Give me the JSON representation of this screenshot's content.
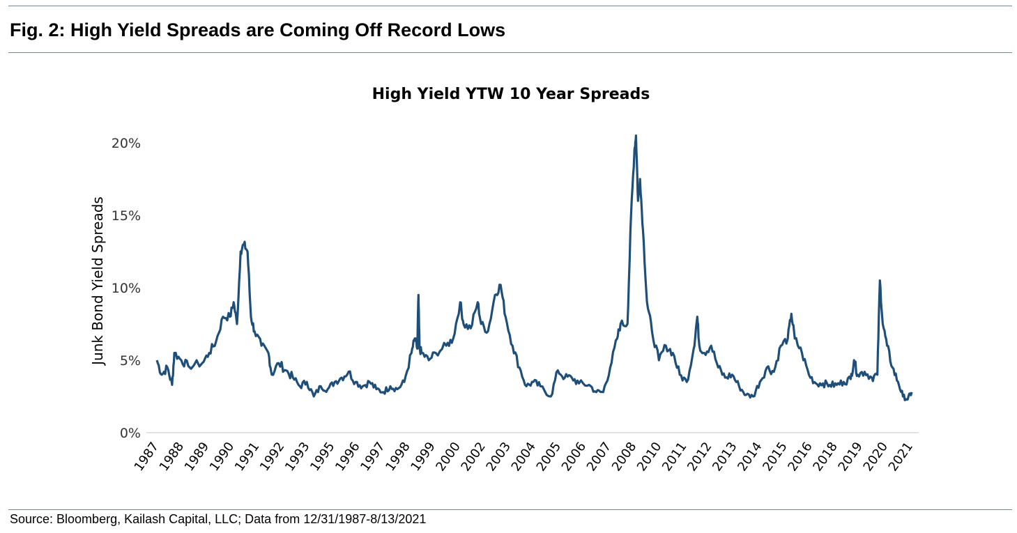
{
  "header": {
    "title": "Fig. 2:  High Yield Spreads are Coming Off Record Lows"
  },
  "footer": {
    "source": "Source: Bloomberg, Kailash Capital, LLC; Data from 12/31/1987-8/13/2021"
  },
  "chart_data": {
    "type": "line",
    "title": "High Yield YTW 10 Year Spreads",
    "ylabel": "Junk Bond Yield Spreads",
    "xlabel": "",
    "ylim": [
      0,
      20
    ],
    "yticks": [
      "0%",
      "5%",
      "10%",
      "15%",
      "20%"
    ],
    "ytick_values": [
      0,
      5,
      10,
      15,
      20
    ],
    "xticks": [
      "1987",
      "1988",
      "1989",
      "1990",
      "1991",
      "1992",
      "1993",
      "1995",
      "1996",
      "1997",
      "1998",
      "1999",
      "2000",
      "2002",
      "2003",
      "2004",
      "2005",
      "2006",
      "2007",
      "2008",
      "2010",
      "2011",
      "2012",
      "2013",
      "2014",
      "2015",
      "2016",
      "2018",
      "2019",
      "2020",
      "2021"
    ],
    "xlim": [
      1988.0,
      2021.62
    ],
    "grid": "baseline only",
    "line_color": "#1f4e79",
    "series": [
      {
        "points": [
          [
            1988.0,
            5.0
          ],
          [
            1988.22,
            4.0
          ],
          [
            1988.47,
            4.5
          ],
          [
            1988.68,
            3.3
          ],
          [
            1988.78,
            5.5
          ],
          [
            1989.09,
            5.0
          ],
          [
            1989.4,
            4.6
          ],
          [
            1990.02,
            4.8
          ],
          [
            1990.33,
            5.5
          ],
          [
            1990.64,
            6.3
          ],
          [
            1990.95,
            8.0
          ],
          [
            1991.26,
            8.0
          ],
          [
            1991.42,
            9.0
          ],
          [
            1991.57,
            7.5
          ],
          [
            1991.73,
            12.5
          ],
          [
            1991.88,
            13.0
          ],
          [
            1992.04,
            12.5
          ],
          [
            1992.19,
            8.0
          ],
          [
            1992.35,
            7.0
          ],
          [
            1992.66,
            6.0
          ],
          [
            1992.97,
            5.5
          ],
          [
            1993.12,
            4.0
          ],
          [
            1993.43,
            4.8
          ],
          [
            1993.75,
            4.3
          ],
          [
            1994.06,
            3.8
          ],
          [
            1994.37,
            3.2
          ],
          [
            1994.68,
            3.5
          ],
          [
            1994.99,
            2.5
          ],
          [
            1995.3,
            3.2
          ],
          [
            1995.61,
            3.0
          ],
          [
            1995.92,
            3.5
          ],
          [
            1996.23,
            3.8
          ],
          [
            1996.54,
            4.2
          ],
          [
            1996.85,
            3.5
          ],
          [
            1997.16,
            3.2
          ],
          [
            1997.47,
            3.5
          ],
          [
            1997.78,
            3.0
          ],
          [
            1998.09,
            2.8
          ],
          [
            1998.4,
            3.2
          ],
          [
            1998.71,
            3.0
          ],
          [
            1999.02,
            3.5
          ],
          [
            1999.34,
            5.5
          ],
          [
            1999.49,
            6.5
          ],
          [
            1999.6,
            5.8
          ],
          [
            1999.65,
            9.5
          ],
          [
            1999.7,
            5.8
          ],
          [
            1999.8,
            5.5
          ],
          [
            2000.11,
            5.0
          ],
          [
            2000.42,
            5.5
          ],
          [
            2000.89,
            6.0
          ],
          [
            2001.2,
            6.5
          ],
          [
            2001.51,
            9.0
          ],
          [
            2001.66,
            7.5
          ],
          [
            2001.98,
            7.2
          ],
          [
            2002.29,
            9.0
          ],
          [
            2002.44,
            7.5
          ],
          [
            2002.75,
            7.0
          ],
          [
            2003.06,
            9.5
          ],
          [
            2003.31,
            10.2
          ],
          [
            2003.53,
            8.0
          ],
          [
            2003.84,
            6.0
          ],
          [
            2004.15,
            4.5
          ],
          [
            2004.46,
            3.2
          ],
          [
            2004.77,
            3.5
          ],
          [
            2005.08,
            3.2
          ],
          [
            2005.55,
            2.5
          ],
          [
            2005.86,
            4.3
          ],
          [
            2006.17,
            3.8
          ],
          [
            2006.48,
            3.8
          ],
          [
            2006.8,
            3.4
          ],
          [
            2007.25,
            3.3
          ],
          [
            2007.57,
            2.8
          ],
          [
            2007.88,
            2.8
          ],
          [
            2008.19,
            4.5
          ],
          [
            2008.5,
            6.5
          ],
          [
            2008.65,
            7.5
          ],
          [
            2008.96,
            7.5
          ],
          [
            2009.12,
            15.0
          ],
          [
            2009.27,
            19.5
          ],
          [
            2009.34,
            20.5
          ],
          [
            2009.43,
            16.0
          ],
          [
            2009.52,
            17.5
          ],
          [
            2009.65,
            14.0
          ],
          [
            2009.83,
            9.0
          ],
          [
            2010.05,
            7.0
          ],
          [
            2010.36,
            5.0
          ],
          [
            2010.67,
            6.0
          ],
          [
            2010.98,
            5.5
          ],
          [
            2011.29,
            4.0
          ],
          [
            2011.6,
            3.5
          ],
          [
            2011.91,
            5.8
          ],
          [
            2012.07,
            8.0
          ],
          [
            2012.16,
            6.0
          ],
          [
            2012.38,
            5.5
          ],
          [
            2012.69,
            6.0
          ],
          [
            2013.0,
            4.5
          ],
          [
            2013.31,
            3.8
          ],
          [
            2013.62,
            4.0
          ],
          [
            2013.93,
            3.2
          ],
          [
            2014.24,
            2.6
          ],
          [
            2014.55,
            2.5
          ],
          [
            2014.86,
            3.5
          ],
          [
            2015.17,
            4.5
          ],
          [
            2015.48,
            4.2
          ],
          [
            2015.79,
            6.0
          ],
          [
            2016.1,
            6.5
          ],
          [
            2016.26,
            8.2
          ],
          [
            2016.41,
            6.5
          ],
          [
            2016.73,
            5.5
          ],
          [
            2017.04,
            4.0
          ],
          [
            2017.35,
            3.4
          ],
          [
            2017.66,
            3.4
          ],
          [
            2017.97,
            3.3
          ],
          [
            2018.28,
            3.3
          ],
          [
            2018.59,
            3.5
          ],
          [
            2018.9,
            3.7
          ],
          [
            2019.05,
            5.0
          ],
          [
            2019.21,
            4.0
          ],
          [
            2019.52,
            4.2
          ],
          [
            2019.84,
            3.8
          ],
          [
            2020.09,
            4.0
          ],
          [
            2020.2,
            10.5
          ],
          [
            2020.33,
            7.5
          ],
          [
            2020.52,
            6.0
          ],
          [
            2020.76,
            4.5
          ],
          [
            2021.01,
            3.5
          ],
          [
            2021.23,
            2.5
          ],
          [
            2021.44,
            2.3
          ],
          [
            2021.62,
            2.8
          ]
        ]
      }
    ]
  }
}
